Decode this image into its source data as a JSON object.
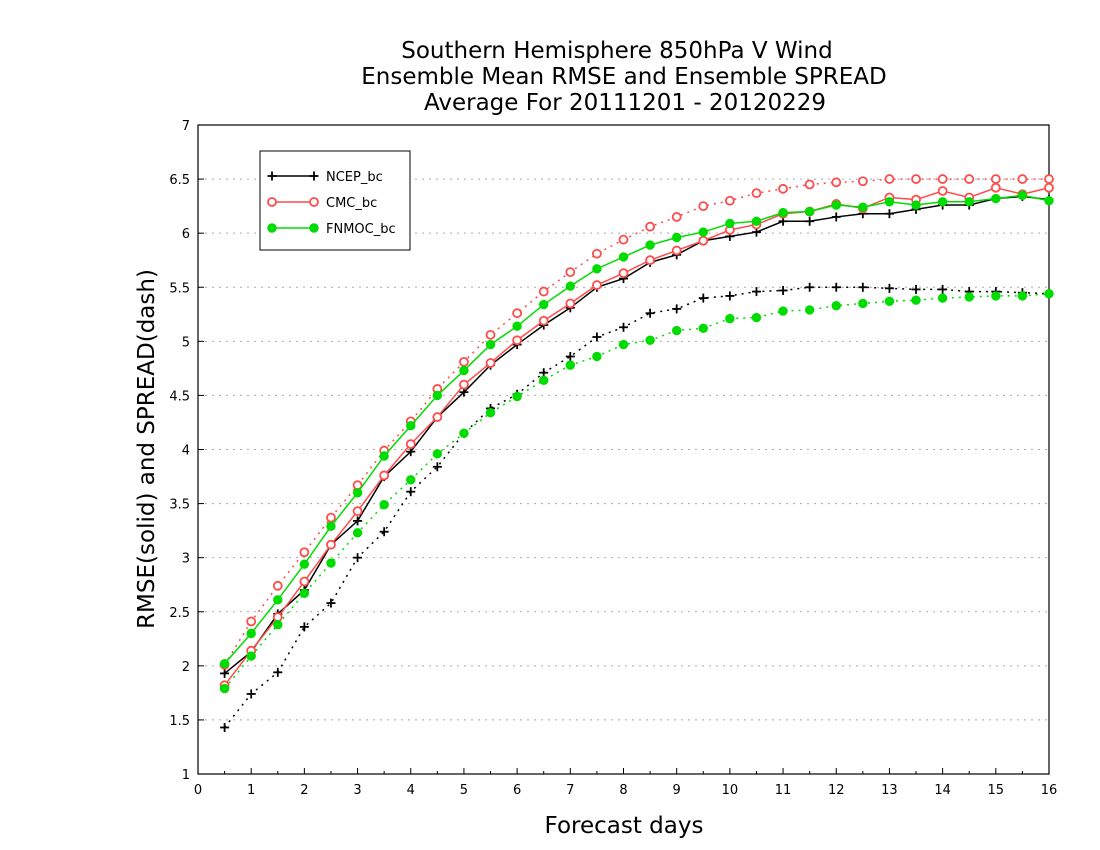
{
  "chart_data": {
    "type": "line",
    "title_lines": [
      "Southern Hemisphere 850hPa V Wind",
      "Ensemble Mean RMSE and Ensemble SPREAD",
      "Average For 20111201 - 20120229"
    ],
    "xlabel": "Forecast days",
    "ylabel": "RMSE(solid) and SPREAD(dash)",
    "xlim": [
      0,
      16
    ],
    "ylim": [
      1,
      7
    ],
    "x_ticks": [
      0,
      1,
      2,
      3,
      4,
      5,
      6,
      7,
      8,
      9,
      10,
      11,
      12,
      13,
      14,
      15,
      16
    ],
    "y_ticks": [
      1,
      1.5,
      2,
      2.5,
      3,
      3.5,
      4,
      4.5,
      5,
      5.5,
      6,
      6.5,
      7
    ],
    "grid": "horizontal dotted",
    "legend_position": "top-left",
    "x": [
      0.5,
      1,
      1.5,
      2,
      2.5,
      3,
      3.5,
      4,
      4.5,
      5,
      5.5,
      6,
      6.5,
      7,
      7.5,
      8,
      8.5,
      9,
      9.5,
      10,
      10.5,
      11,
      11.5,
      12,
      12.5,
      13,
      13.5,
      14,
      14.5,
      15,
      15.5,
      16
    ],
    "series": [
      {
        "name": "NCEP_bc",
        "color": "#000000",
        "marker": "plus",
        "rmse": [
          1.93,
          2.13,
          2.48,
          2.7,
          3.12,
          3.34,
          3.75,
          3.98,
          4.3,
          4.53,
          4.78,
          4.97,
          5.15,
          5.31,
          5.5,
          5.58,
          5.73,
          5.8,
          5.93,
          5.97,
          6.01,
          6.11,
          6.11,
          6.15,
          6.18,
          6.18,
          6.22,
          6.26,
          6.26,
          6.32,
          6.34,
          6.31
        ],
        "spread": [
          1.43,
          1.74,
          1.94,
          2.36,
          2.58,
          3.0,
          3.24,
          3.61,
          3.84,
          4.15,
          4.38,
          4.51,
          4.71,
          4.86,
          5.04,
          5.13,
          5.26,
          5.3,
          5.4,
          5.42,
          5.46,
          5.47,
          5.5,
          5.5,
          5.5,
          5.49,
          5.48,
          5.48,
          5.46,
          5.46,
          5.45,
          5.44
        ]
      },
      {
        "name": "CMC_bc",
        "color": "#ff4b4b",
        "marker": "open-circle",
        "rmse": [
          1.82,
          2.14,
          2.45,
          2.78,
          3.12,
          3.43,
          3.76,
          4.05,
          4.3,
          4.6,
          4.8,
          5.01,
          5.19,
          5.35,
          5.52,
          5.63,
          5.75,
          5.84,
          5.93,
          6.03,
          6.08,
          6.18,
          6.2,
          6.27,
          6.23,
          6.33,
          6.31,
          6.39,
          6.33,
          6.42,
          6.36,
          6.42
        ],
        "spread": [
          2.01,
          2.41,
          2.74,
          3.05,
          3.37,
          3.67,
          3.99,
          4.26,
          4.56,
          4.81,
          5.06,
          5.26,
          5.46,
          5.64,
          5.81,
          5.94,
          6.06,
          6.15,
          6.25,
          6.3,
          6.37,
          6.41,
          6.45,
          6.47,
          6.48,
          6.5,
          6.5,
          6.5,
          6.5,
          6.5,
          6.5,
          6.5
        ]
      },
      {
        "name": "FNMOC_bc",
        "color": "#00dc00",
        "marker": "filled-circle",
        "rmse": [
          2.02,
          2.3,
          2.61,
          2.94,
          3.29,
          3.6,
          3.94,
          4.22,
          4.5,
          4.73,
          4.97,
          5.14,
          5.34,
          5.51,
          5.67,
          5.78,
          5.89,
          5.96,
          6.01,
          6.09,
          6.11,
          6.19,
          6.2,
          6.26,
          6.24,
          6.29,
          6.26,
          6.29,
          6.29,
          6.32,
          6.35,
          6.3
        ],
        "spread": [
          1.79,
          2.09,
          2.38,
          2.67,
          2.95,
          3.23,
          3.49,
          3.72,
          3.96,
          4.15,
          4.34,
          4.49,
          4.64,
          4.78,
          4.86,
          4.97,
          5.01,
          5.1,
          5.12,
          5.21,
          5.22,
          5.28,
          5.29,
          5.33,
          5.35,
          5.37,
          5.38,
          5.4,
          5.41,
          5.42,
          5.42,
          5.44
        ]
      }
    ]
  }
}
